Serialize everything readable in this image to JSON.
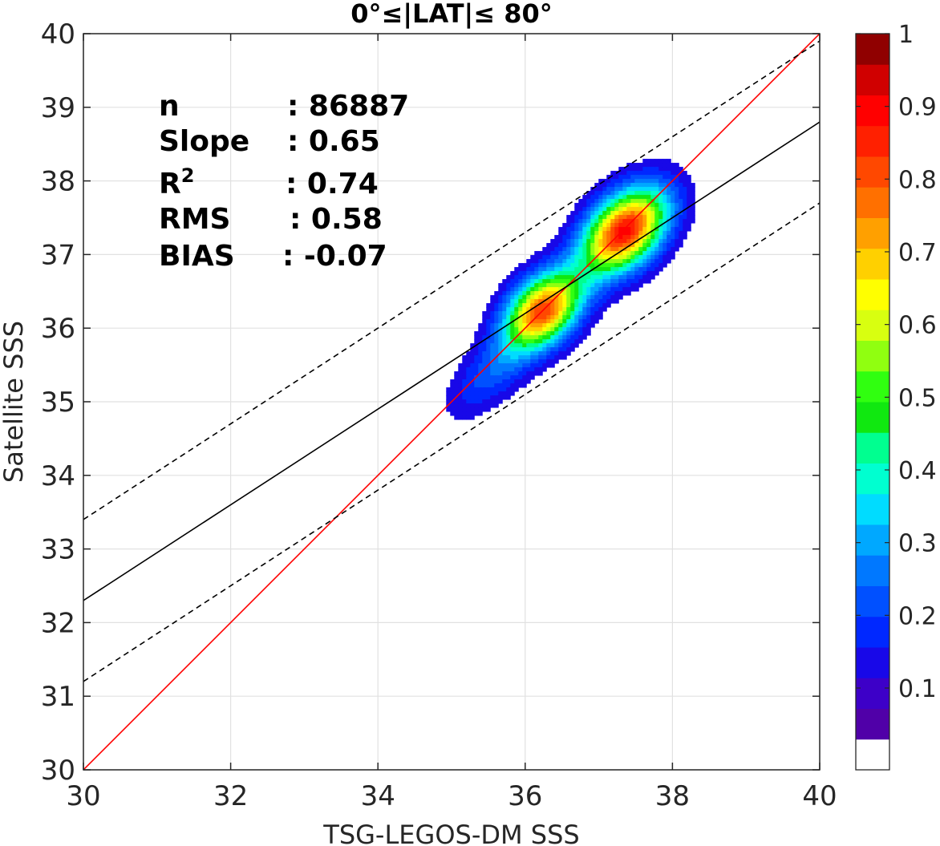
{
  "chart_data": {
    "type": "heatmap",
    "subtype": "normalized density contour scatter",
    "title": "0°≤|LAT|≤ 80°",
    "xlabel": "TSG-LEGOS-DM SSS",
    "ylabel": "Satellite SSS",
    "xlim": [
      30,
      40
    ],
    "ylim": [
      30,
      40
    ],
    "xticks": [
      "30",
      "32",
      "34",
      "36",
      "38",
      "40"
    ],
    "yticks": [
      "30",
      "31",
      "32",
      "33",
      "34",
      "35",
      "36",
      "37",
      "38",
      "39",
      "40"
    ],
    "grid": true,
    "stats": [
      {
        "label": "n",
        "value": ": 86887"
      },
      {
        "label": "Slope",
        "value": ": 0.65"
      },
      {
        "label": "R",
        "sup": "2",
        "value": ": 0.74"
      },
      {
        "label": "RMS",
        "value": ": 0.58"
      },
      {
        "label": "BIAS",
        "value": ": -0.07"
      }
    ],
    "lines": [
      {
        "name": "1:1",
        "color": "#ff0000",
        "style": "solid",
        "points": [
          [
            30,
            30
          ],
          [
            40,
            40
          ]
        ]
      },
      {
        "name": "fit",
        "color": "#000000",
        "style": "solid",
        "points": [
          [
            30,
            32.3
          ],
          [
            40,
            38.8
          ]
        ]
      },
      {
        "name": "fit+",
        "color": "#000000",
        "style": "dashed",
        "points": [
          [
            30,
            33.4
          ],
          [
            40,
            39.9
          ]
        ]
      },
      {
        "name": "fit-",
        "color": "#000000",
        "style": "dashed",
        "points": [
          [
            30,
            31.2
          ],
          [
            40,
            37.7
          ]
        ]
      }
    ],
    "density_peaks": [
      {
        "x": 36.25,
        "y": 36.25,
        "value": 0.85
      },
      {
        "x": 37.35,
        "y": 37.32,
        "value": 0.95
      }
    ],
    "contour_levels": [
      0.05,
      0.1,
      0.15,
      0.2,
      0.25,
      0.3,
      0.35,
      0.4,
      0.45,
      0.5,
      0.55,
      0.6,
      0.65,
      0.7,
      0.75,
      0.8,
      0.85,
      0.9,
      0.95
    ],
    "colorbar": {
      "ticks": [
        "0.1",
        "0.2",
        "0.3",
        "0.4",
        "0.5",
        "0.6",
        "0.7",
        "0.8",
        "0.9",
        "1"
      ],
      "tick_values": [
        0.1,
        0.2,
        0.3,
        0.4,
        0.5,
        0.6,
        0.7,
        0.8,
        0.9,
        1.0
      ],
      "colors": [
        "#ffffff",
        "#5000a8",
        "#3d00c8",
        "#1808e8",
        "#0028ff",
        "#0050ff",
        "#0078ff",
        "#00a8ff",
        "#00dcff",
        "#00ffd0",
        "#00ff90",
        "#10e810",
        "#30ff10",
        "#90ff10",
        "#d8ff10",
        "#ffff00",
        "#ffd000",
        "#ffa000",
        "#ff7000",
        "#ff4800",
        "#ff2000",
        "#ff0000",
        "#d00000",
        "#900000"
      ]
    }
  }
}
